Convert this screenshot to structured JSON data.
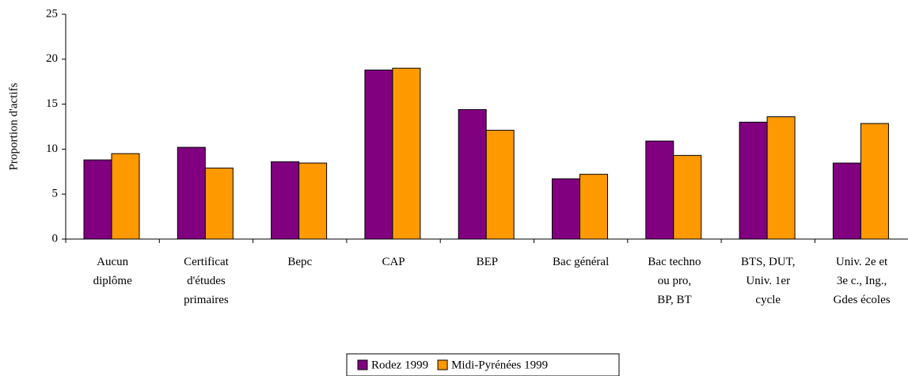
{
  "chart_data": {
    "type": "bar",
    "y_label": "Proportion d'actifs",
    "categories": [
      "Aucun\ndiplôme",
      "Certificat\nd'études\nprimaires",
      "Bepc",
      "CAP",
      "BEP",
      "Bac général",
      "Bac techno\nou pro,\nBP, BT",
      "BTS, DUT,\nUniv. 1er\ncycle",
      "Univ. 2e et\n3e c., Ing.,\nGdes écoles"
    ],
    "series": [
      {
        "name": "Rodez 1999",
        "color": "#800080",
        "values": [
          8.8,
          10.2,
          8.6,
          18.8,
          14.4,
          6.7,
          10.9,
          13.0,
          8.45
        ]
      },
      {
        "name": "Midi-Pyrénées 1999",
        "color": "#ff9900",
        "values": [
          9.5,
          7.9,
          8.45,
          19.0,
          12.1,
          7.2,
          9.3,
          13.6,
          12.85
        ]
      }
    ],
    "ylim": [
      0,
      25
    ],
    "yticks": [
      0,
      5,
      10,
      15,
      20,
      25
    ],
    "legend": "bottom"
  }
}
